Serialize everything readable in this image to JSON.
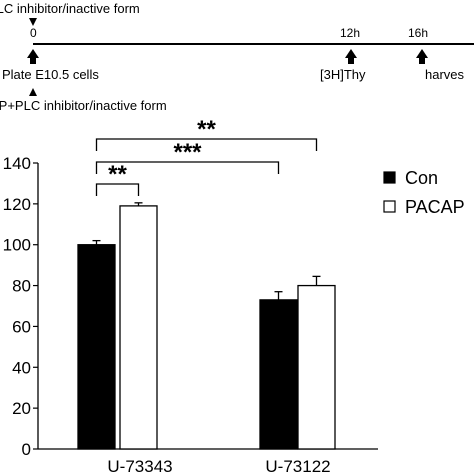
{
  "timeline": {
    "top_label": "PLC inhibitor/inactive form",
    "bottom_label": "AP+PLC inhibitor/inactive form",
    "ticks": [
      {
        "time": "0",
        "event": "Plate E10.5 cells"
      },
      {
        "time": "12h",
        "event": "[3H]Thy"
      },
      {
        "time": "16h",
        "event": "harves"
      }
    ]
  },
  "chart_data": {
    "type": "bar",
    "categories": [
      "U-73343",
      "U-73122"
    ],
    "series": [
      {
        "name": "Con",
        "values": [
          100,
          73
        ],
        "errors": [
          2,
          4
        ],
        "color": "#000000"
      },
      {
        "name": "PACAP",
        "values": [
          119,
          80
        ],
        "errors": [
          1.5,
          4.5
        ],
        "color": "#ffffff"
      }
    ],
    "ylim": [
      0,
      140
    ],
    "yticks": [
      "0",
      "20",
      "40",
      "60",
      "80",
      "100",
      "120",
      "140"
    ],
    "ytick_labels": [
      "0",
      "20",
      "40",
      "60",
      "80",
      "100",
      "120",
      "140"
    ],
    "legend_position": "right",
    "significance": [
      {
        "label": "**",
        "from": "Con U-73343",
        "to": "PACAP U-73343"
      },
      {
        "label": "***",
        "from": "Con U-73343",
        "to": "Con U-73122"
      },
      {
        "label": "**",
        "from": "Con U-73343",
        "to": "PACAP U-73122"
      }
    ]
  }
}
